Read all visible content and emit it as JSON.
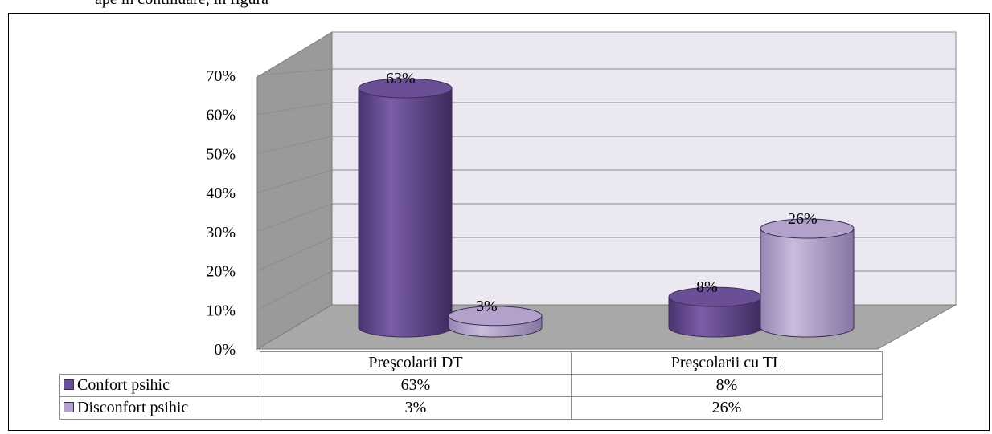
{
  "page_header": "ape în continuare, în figura",
  "chart_data": {
    "type": "bar",
    "style": "3d-cylinder",
    "categories": [
      "Preşcolarii DT",
      "Preşcolarii cu TL"
    ],
    "series": [
      {
        "name": "Confort psihic",
        "values": [
          63,
          8
        ],
        "labels": [
          "63%",
          "8%"
        ],
        "color": "#6b4f96"
      },
      {
        "name": "Disconfort psihic",
        "values": [
          3,
          26
        ],
        "labels": [
          "3%",
          "26%"
        ],
        "color": "#b3a1cc"
      }
    ],
    "y_ticks": [
      "0%",
      "10%",
      "20%",
      "30%",
      "40%",
      "50%",
      "60%",
      "70%"
    ],
    "ylim": [
      0,
      70
    ],
    "grid": true,
    "legend": "data-table"
  }
}
